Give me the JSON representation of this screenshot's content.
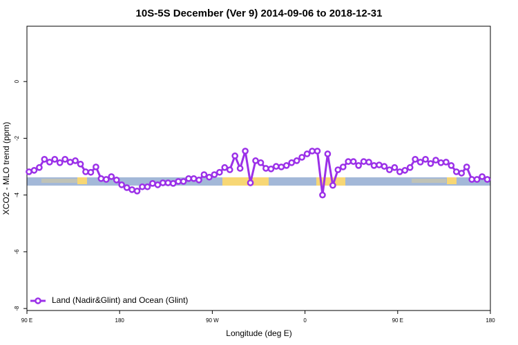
{
  "chart_data": {
    "type": "line",
    "title": "10S-5S December (Ver 9)   2014-09-06 to 2018-12-31",
    "xlabel": "Longitude (deg E)",
    "ylabel": "XCO2 - MLO trend (ppm)",
    "xlim": [
      90,
      540
    ],
    "ylim": [
      -8.07,
      1.95
    ],
    "xticks": [
      {
        "value": 90,
        "label": "90 E"
      },
      180,
      {
        "value": 270,
        "label": "90 W"
      },
      {
        "value": 360,
        "label": "0"
      },
      {
        "value": 450,
        "label": "90 E"
      },
      {
        "value": 540,
        "label": "180"
      }
    ],
    "yticks": [
      0,
      -2,
      -4,
      -6,
      -8
    ],
    "legend_position": "lower left",
    "series": [
      {
        "name": "Land (Nadir&Glint) and Ocean (Glint)",
        "color": "#9b30e8",
        "x": [
          92,
          97,
          102,
          107,
          112,
          117,
          122,
          127,
          132,
          137,
          142,
          147,
          152,
          157,
          162,
          167,
          172,
          177,
          182,
          187,
          192,
          197,
          202,
          207,
          212,
          217,
          222,
          227,
          232,
          237,
          242,
          247,
          252,
          257,
          262,
          267,
          272,
          277,
          282,
          287,
          292,
          297,
          302,
          307,
          312,
          317,
          322,
          327,
          332,
          337,
          342,
          347,
          352,
          357,
          362,
          367,
          372,
          377,
          382,
          387,
          392,
          397,
          402,
          407,
          412,
          417,
          422,
          427,
          432,
          437,
          442,
          447,
          452,
          457,
          462,
          467,
          472,
          477,
          482,
          487,
          492,
          497,
          502,
          507,
          512,
          517,
          522,
          527,
          532,
          537
        ],
        "values": [
          -3.18,
          -3.13,
          -3.03,
          -2.74,
          -2.84,
          -2.74,
          -2.86,
          -2.74,
          -2.84,
          -2.79,
          -2.91,
          -3.18,
          -3.2,
          -3.01,
          -3.42,
          -3.45,
          -3.35,
          -3.47,
          -3.64,
          -3.74,
          -3.81,
          -3.86,
          -3.71,
          -3.71,
          -3.59,
          -3.64,
          -3.57,
          -3.57,
          -3.59,
          -3.52,
          -3.52,
          -3.42,
          -3.42,
          -3.47,
          -3.28,
          -3.37,
          -3.28,
          -3.2,
          -3.03,
          -3.11,
          -2.62,
          -3.06,
          -2.45,
          -3.57,
          -2.79,
          -2.86,
          -3.06,
          -3.08,
          -2.99,
          -3.01,
          -2.96,
          -2.86,
          -2.79,
          -2.67,
          -2.55,
          -2.45,
          -2.45,
          -4.0,
          -2.55,
          -3.66,
          -3.11,
          -3.01,
          -2.82,
          -2.82,
          -2.96,
          -2.82,
          -2.84,
          -2.96,
          -2.94,
          -2.99,
          -3.11,
          -3.03,
          -3.18,
          -3.13,
          -3.03,
          -2.74,
          -2.84,
          -2.74,
          -2.89,
          -2.77,
          -2.86,
          -2.84,
          -2.96,
          -3.18,
          -3.23,
          -3.01,
          -3.45,
          -3.45,
          -3.35,
          -3.45
        ]
      }
    ]
  }
}
